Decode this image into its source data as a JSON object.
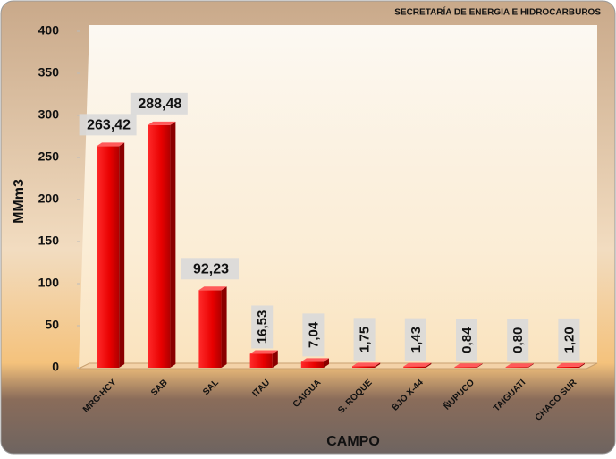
{
  "chart_data": {
    "type": "bar",
    "title": "SECRETARÍA DE ENERGIA E HIDROCARBUROS",
    "y_label": "MMm3",
    "x_label": "CAMPO",
    "categories": [
      "MRG-HCY",
      "SÁB",
      "SAL",
      "ITAU",
      "CAIGUA",
      "S. ROQUE",
      "BJO X-44",
      "ÑUPUCO",
      "TAIGUATI",
      "CHACO SUR"
    ],
    "values": [
      263.42,
      288.48,
      92.23,
      16.53,
      7.04,
      1.75,
      1.43,
      0.84,
      0.8,
      1.2
    ],
    "value_labels": [
      "263,42",
      "288,48",
      "92,23",
      "16,53",
      "7,04",
      "1,75",
      "1,43",
      "0,84",
      "0,80",
      "1,20"
    ],
    "color": "#e00000",
    "ylim": [
      0,
      400
    ],
    "yticks": [
      0,
      50,
      100,
      150,
      200,
      250,
      300,
      350,
      400
    ]
  }
}
